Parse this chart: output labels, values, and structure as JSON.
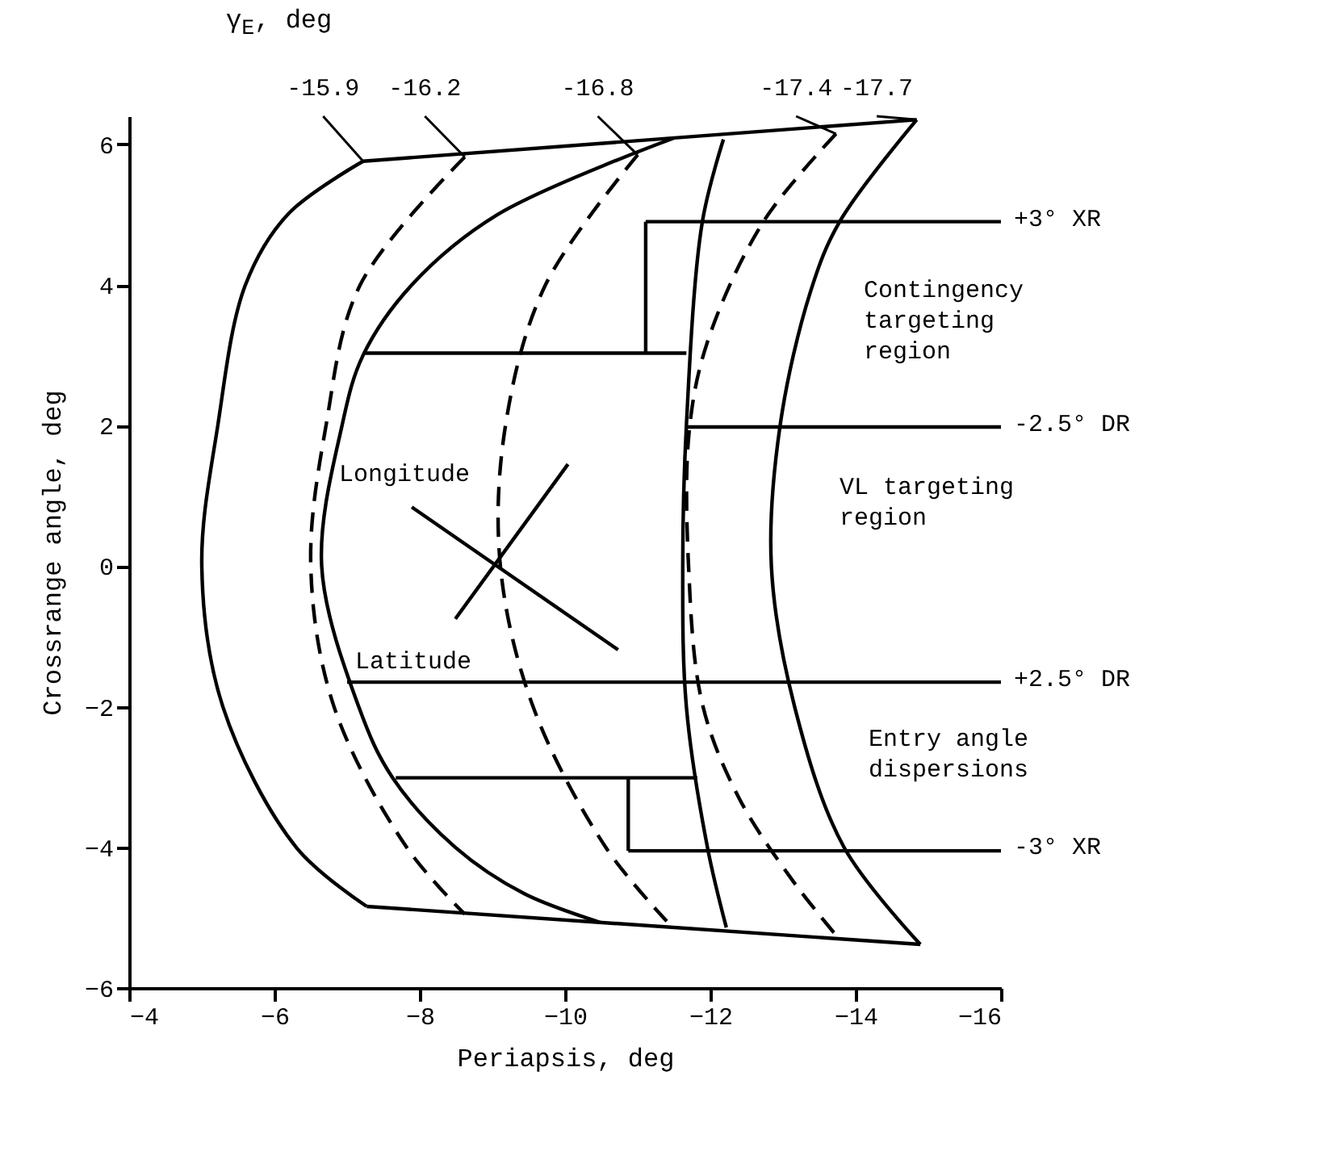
{
  "chart_data": {
    "type": "line",
    "xlabel": "Periapsis, deg",
    "ylabel": "Crossrange angle, deg",
    "legend_title": "γ$_{E}$, deg",
    "xlim": [
      -4,
      -16
    ],
    "xticks": [
      -4,
      -6,
      -8,
      -10,
      -12,
      -14,
      -16
    ],
    "ylim": [
      -6,
      6.4
    ],
    "yticks": [
      -6,
      -4,
      -2,
      0,
      2,
      4,
      6
    ],
    "grid": false,
    "series": [
      {
        "name": "-15.9",
        "color": "#000000",
        "line_style": "solid",
        "x": [
          -7.22,
          -6.18,
          -5.6,
          -5.22,
          -5.0,
          -5.29,
          -6.3,
          -7.27
        ],
        "values": [
          5.76,
          5.0,
          4.0,
          2.0,
          0,
          -2.0,
          -4.0,
          -4.84
        ]
      },
      {
        "name": "-16.2",
        "color": "#000000",
        "line_style": "dashed",
        "x": [
          -8.62,
          -7.18,
          -6.71,
          -6.5,
          -6.82,
          -7.82,
          -8.62
        ],
        "values": [
          5.82,
          4.0,
          2.0,
          0,
          -2.0,
          -4.0,
          -4.95
        ]
      },
      {
        "color": "#000000",
        "line_style": "solid",
        "x": [
          -11.5,
          -9.07,
          -7.89,
          -7.22,
          -6.93,
          -6.65,
          -7.16,
          -7.62,
          -8.49,
          -9.44,
          -10.49
        ],
        "values": [
          6.09,
          5.0,
          4.0,
          3.0,
          2.0,
          0,
          -2.0,
          -3.0,
          -4.0,
          -4.66,
          -5.07
        ]
      },
      {
        "name": "-16.8",
        "color": "#000000",
        "line_style": "dashed",
        "x": [
          -11.0,
          -9.73,
          -9.18,
          -9.11,
          -9.56,
          -10.56,
          -11.4
        ],
        "values": [
          5.85,
          4.0,
          2.0,
          0,
          -2.0,
          -4.0,
          -5.05
        ]
      },
      {
        "color": "#000000",
        "line_style": "solid",
        "x": [
          -12.18,
          -11.89,
          -11.67,
          -11.62,
          -11.67,
          -11.96,
          -12.22
        ],
        "values": [
          6.07,
          4.9,
          2.0,
          0,
          -2.0,
          -4.0,
          -5.14
        ]
      },
      {
        "name": "-17.4",
        "color": "#000000",
        "line_style": "dashed",
        "x": [
          -13.73,
          -12.73,
          -11.96,
          -11.71,
          -11.7,
          -11.89,
          -12.38,
          -13.11,
          -13.73
        ],
        "values": [
          6.15,
          4.9,
          3.19,
          1.93,
          0,
          -1.96,
          -3.27,
          -4.44,
          -5.25
        ]
      },
      {
        "name": "-17.7",
        "color": "#000000",
        "line_style": "solid",
        "x": [
          -14.84,
          -13.78,
          -13.38,
          -12.96,
          -12.84,
          -13.16,
          -13.84,
          -14.89
        ],
        "values": [
          6.35,
          4.9,
          3.91,
          2.0,
          0,
          -2.0,
          -4.0,
          -5.38
        ]
      },
      {
        "color": "#000000",
        "line_style": "solid",
        "x": [
          -7.22,
          -14.84
        ],
        "values": [
          5.76,
          6.35
        ]
      },
      {
        "color": "#000000",
        "line_style": "solid",
        "x": [
          -7.27,
          -14.89
        ],
        "values": [
          -4.84,
          -5.38
        ]
      },
      {
        "color": "#000000",
        "line_style": "solid",
        "x": [
          -11.11,
          -11.11
        ],
        "values": [
          3.03,
          4.9
        ]
      },
      {
        "color": "#000000",
        "line_style": "solid",
        "x": [
          -11.11,
          -16
        ],
        "values": [
          4.9,
          4.9
        ]
      },
      {
        "color": "#000000",
        "line_style": "solid",
        "x": [
          -7.22,
          -11.67
        ],
        "values": [
          3.03,
          3.03
        ]
      },
      {
        "color": "#000000",
        "line_style": "solid",
        "x": [
          -11.67,
          -16
        ],
        "values": [
          1.98,
          1.98
        ]
      },
      {
        "color": "#000000",
        "line_style": "solid",
        "x": [
          -7.0,
          -16
        ],
        "values": [
          -1.65,
          -1.65
        ]
      },
      {
        "color": "#000000",
        "line_style": "solid",
        "x": [
          -7.67,
          -11.82
        ],
        "values": [
          -3.01,
          -3.01
        ]
      },
      {
        "color": "#000000",
        "line_style": "solid",
        "x": [
          -10.87,
          -10.87
        ],
        "values": [
          -3.01,
          -4.05
        ]
      },
      {
        "color": "#000000",
        "line_style": "solid",
        "x": [
          -10.87,
          -16
        ],
        "values": [
          -4.05,
          -4.05
        ]
      },
      {
        "color": "#000000",
        "line_style": "solid",
        "x": [
          -10.04,
          -8.49
        ],
        "values": [
          1.45,
          -0.75
        ]
      },
      {
        "color": "#000000",
        "line_style": "solid",
        "x": [
          -7.89,
          -10.73
        ],
        "values": [
          0.84,
          -1.19
        ]
      }
    ],
    "annotations": [
      "+3° XR",
      "Contingency\ntargeting\nregion",
      "-2.5° DR",
      "VL targeting\nregion",
      "Longitude",
      "Latitude",
      "+2.5° DR",
      "Entry angle\ndispersions",
      "-3° XR"
    ]
  }
}
